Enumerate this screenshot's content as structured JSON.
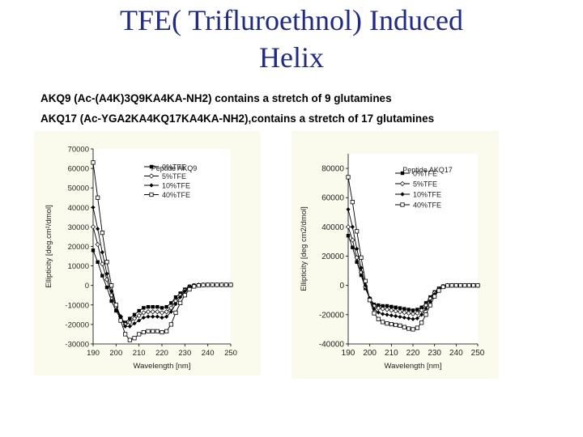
{
  "slide": {
    "title_line1": "TFE( Trifluroethnol) Induced",
    "title_line2": "Helix",
    "desc1": "AKQ9 (Ac-(A4K)3Q9KA4KA-NH2) contains a stretch of 9 glutamines",
    "desc2": "AKQ17 (Ac-YGA2KA4KQ17KA4KA-NH2),contains a stretch of 17 glutamines"
  },
  "chart_data": [
    {
      "type": "line",
      "title": "",
      "legend_title": "Peptide AKQ9",
      "xlabel": "Wavelength [nm]",
      "ylabel": "Ellipticity [deg.cm²/dmol]",
      "xlim": [
        190,
        250
      ],
      "ylim": [
        -30000,
        70000
      ],
      "xticks": [
        190,
        200,
        210,
        220,
        230,
        240,
        250
      ],
      "yticks": [
        -30000,
        -20000,
        -10000,
        0,
        10000,
        20000,
        30000,
        40000,
        50000,
        60000,
        70000
      ],
      "x": [
        190,
        192,
        194,
        196,
        198,
        200,
        202,
        204,
        206,
        208,
        210,
        212,
        214,
        216,
        218,
        220,
        222,
        224,
        226,
        228,
        230,
        232,
        234,
        236,
        238,
        240,
        242,
        244,
        246,
        248,
        250
      ],
      "series": [
        {
          "name": "0%TFE",
          "marker": "filled-square",
          "values": [
            18000,
            12000,
            5000,
            -1000,
            -8000,
            -13000,
            -17000,
            -19000,
            -17000,
            -15000,
            -13000,
            -11500,
            -11000,
            -11000,
            -11000,
            -11500,
            -11000,
            -9000,
            -6000,
            -4000,
            -2000,
            -500,
            0,
            200,
            300,
            300,
            300,
            300,
            300,
            300,
            300
          ]
        },
        {
          "name": "5%TFE",
          "marker": "diamond",
          "values": [
            30000,
            21000,
            11000,
            3000,
            -5000,
            -11000,
            -16000,
            -20000,
            -19000,
            -17000,
            -15500,
            -14000,
            -13500,
            -13500,
            -13500,
            -14000,
            -13500,
            -11500,
            -8000,
            -5000,
            -2500,
            -700,
            0,
            200,
            300,
            300,
            300,
            300,
            300,
            300,
            300
          ]
        },
        {
          "name": "10%TFE",
          "marker": "filled-diamond",
          "values": [
            40000,
            29000,
            17000,
            6000,
            -3000,
            -10000,
            -16000,
            -21000,
            -21000,
            -19500,
            -18000,
            -16500,
            -16000,
            -16000,
            -16000,
            -16500,
            -16000,
            -13500,
            -9500,
            -6000,
            -3000,
            -1000,
            -100,
            200,
            300,
            300,
            300,
            300,
            300,
            300,
            300
          ]
        },
        {
          "name": "40%TFE",
          "marker": "open-square",
          "values": [
            63000,
            45000,
            27000,
            12000,
            0,
            -10000,
            -18000,
            -25000,
            -28000,
            -27000,
            -25000,
            -24000,
            -23500,
            -23500,
            -23500,
            -24000,
            -23500,
            -20000,
            -14000,
            -9000,
            -5000,
            -2000,
            -500,
            0,
            200,
            300,
            300,
            300,
            300,
            300,
            300
          ]
        }
      ]
    },
    {
      "type": "line",
      "title": "",
      "legend_title": "Peptide AKQ17",
      "xlabel": "Wavelength [nm]",
      "ylabel": "Ellipticity [deg cm2/dmol]",
      "xlim": [
        190,
        250
      ],
      "ylim": [
        -40000,
        90000
      ],
      "xticks": [
        190,
        200,
        210,
        220,
        230,
        240,
        250
      ],
      "yticks": [
        -40000,
        -20000,
        0,
        20000,
        40000,
        60000,
        80000
      ],
      "x": [
        190,
        192,
        194,
        196,
        198,
        200,
        202,
        204,
        206,
        208,
        210,
        212,
        214,
        216,
        218,
        220,
        222,
        224,
        226,
        228,
        230,
        232,
        234,
        236,
        238,
        240,
        242,
        244,
        246,
        248,
        250
      ],
      "series": [
        {
          "name": "0%TFE",
          "marker": "filled-square",
          "values": [
            34000,
            26000,
            16000,
            7000,
            -2000,
            -9000,
            -13000,
            -13500,
            -14000,
            -14000,
            -14500,
            -15000,
            -15500,
            -16000,
            -16500,
            -17000,
            -16500,
            -15000,
            -12000,
            -8000,
            -4500,
            -2000,
            -500,
            0,
            0,
            0,
            0,
            0,
            0,
            0,
            0
          ]
        },
        {
          "name": "5%TFE",
          "marker": "diamond",
          "values": [
            40000,
            31000,
            19000,
            9000,
            -1000,
            -9000,
            -14000,
            -15500,
            -16000,
            -16500,
            -17000,
            -17500,
            -18000,
            -18500,
            -19000,
            -19500,
            -19000,
            -17000,
            -13500,
            -9000,
            -5000,
            -2500,
            -700,
            0,
            0,
            0,
            0,
            0,
            0,
            0,
            0
          ]
        },
        {
          "name": "10%TFE",
          "marker": "filled-diamond",
          "values": [
            52000,
            40000,
            25000,
            12000,
            0,
            -9000,
            -16000,
            -18500,
            -19500,
            -20000,
            -20500,
            -21000,
            -21500,
            -22000,
            -22500,
            -23000,
            -22500,
            -20000,
            -16000,
            -11000,
            -6000,
            -3000,
            -900,
            0,
            0,
            0,
            0,
            0,
            0,
            0,
            0
          ]
        },
        {
          "name": "40%TFE",
          "marker": "open-square",
          "values": [
            74000,
            57000,
            37000,
            19000,
            3000,
            -10000,
            -19000,
            -23000,
            -25000,
            -26000,
            -26500,
            -27000,
            -27500,
            -28500,
            -29500,
            -30000,
            -29000,
            -25500,
            -20000,
            -13500,
            -7500,
            -3500,
            -1000,
            -100,
            0,
            0,
            0,
            0,
            0,
            0,
            0
          ]
        }
      ]
    }
  ]
}
